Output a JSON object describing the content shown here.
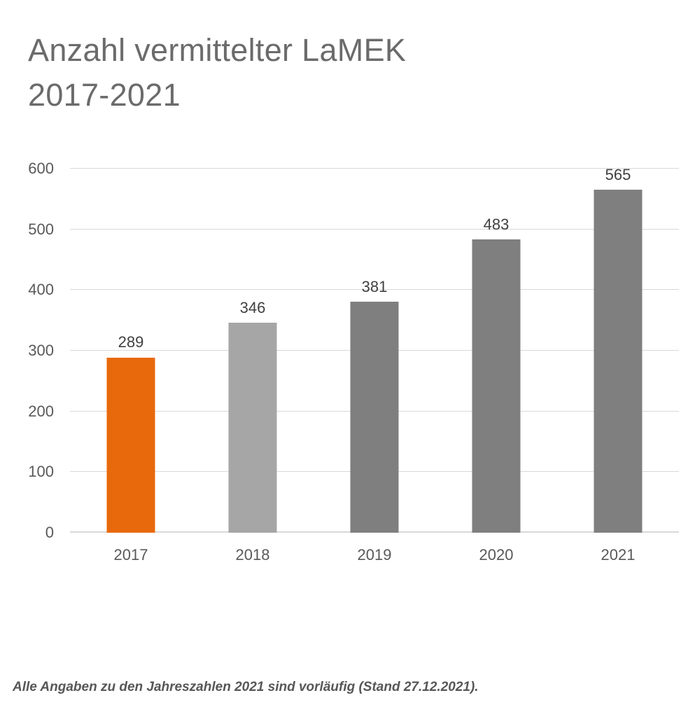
{
  "page": {
    "background": "#FFFFFF"
  },
  "title": {
    "line1": "Anzahl vermittelter LaMEK",
    "line2": "2017-2021"
  },
  "footnote": "Alle Angaben zu den Jahreszahlen 2021 sind vorläufig (Stand 27.12.2021).",
  "chart_data": {
    "type": "bar",
    "title": "Anzahl vermittelter LaMEK 2017-2021",
    "categories": [
      "2017",
      "2018",
      "2019",
      "2020",
      "2021"
    ],
    "values": [
      289,
      346,
      381,
      483,
      565
    ],
    "data_labels": [
      "289",
      "346",
      "381",
      "483",
      "565"
    ],
    "bar_colors": [
      "#E8690B",
      "#A6A6A6",
      "#7F7F7F",
      "#7F7F7F",
      "#7F7F7F"
    ],
    "highlighted_category": "2017",
    "xlabel": "",
    "ylabel": "",
    "ylim": [
      0,
      600
    ],
    "yticks": [
      0,
      100,
      200,
      300,
      400,
      500,
      600
    ],
    "grid": true,
    "legend": false
  },
  "colors": {
    "title_text": "#6B6B6B",
    "axis_text": "#595959",
    "data_label_text": "#404040",
    "gridline": "#D9D9D9",
    "background": "#FFFFFF",
    "bar_highlight": "#E8690B",
    "bar_light_gray": "#A6A6A6",
    "bar_gray": "#7F7F7F"
  }
}
